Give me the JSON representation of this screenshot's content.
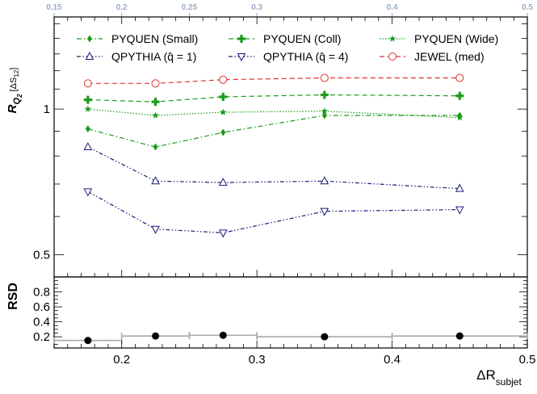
{
  "chart_data": {
    "type": "line",
    "x_axis": {
      "label_main": "ΔR",
      "label_sub": "subjet",
      "range": [
        0.15,
        0.5
      ],
      "ticks": [
        "0.2",
        "0.3",
        "0.4",
        "0.5"
      ],
      "top_ticks": [
        "0.15",
        "0.2",
        "0.25",
        "0.3",
        "0.4",
        "0.5"
      ]
    },
    "top_panel": {
      "y_label_main": "R",
      "y_label_q": "Q",
      "y_label_q_sub": "2",
      "y_label_rest": " [ΔS",
      "y_label_rest_sub": "12",
      "y_label_close": "]",
      "y_range": [
        0.45,
        1.55
      ],
      "y_log": true,
      "y_ticks": [
        "0.5",
        "1"
      ],
      "legend": [
        {
          "label": "PYQUEN (Small)",
          "color": "#1a9b1a",
          "marker": "diamond",
          "dash": "dashdot"
        },
        {
          "label": "PYQUEN (Coll)",
          "color": "#1a9b1a",
          "marker": "cross",
          "dash": "dashed"
        },
        {
          "label": "PYQUEN (Wide)",
          "color": "#1a9b1a",
          "marker": "star",
          "dash": "dotted"
        },
        {
          "label": "QPYTHIA (q̂ = 1)",
          "color": "#1c1c7a",
          "marker": "triangle-up",
          "dash": "dashdotdot"
        },
        {
          "label": "QPYTHIA (q̂ = 4)",
          "color": "#1c1c7a",
          "marker": "triangle-down",
          "dash": "dashdotdot"
        },
        {
          "label": "JEWEL (med)",
          "color": "#e03030",
          "marker": "circle",
          "dash": "dashed"
        }
      ],
      "x": [
        0.175,
        0.225,
        0.275,
        0.35,
        0.45
      ],
      "series": [
        {
          "name": "PYQUEN (Small)",
          "values": [
            0.91,
            0.835,
            0.895,
            0.97,
            0.97
          ]
        },
        {
          "name": "PYQUEN (Coll)",
          "values": [
            1.045,
            1.035,
            1.06,
            1.07,
            1.065
          ]
        },
        {
          "name": "PYQUEN (Wide)",
          "values": [
            1.0,
            0.97,
            0.985,
            0.99,
            0.96
          ]
        },
        {
          "name": "QPYTHIA (q̂ = 1)",
          "values": [
            0.835,
            0.71,
            0.705,
            0.71,
            0.685
          ]
        },
        {
          "name": "QPYTHIA (q̂ = 4)",
          "values": [
            0.675,
            0.565,
            0.555,
            0.615,
            0.62
          ]
        },
        {
          "name": "JEWEL (med)",
          "values": [
            1.13,
            1.13,
            1.15,
            1.16,
            1.16
          ]
        }
      ]
    },
    "bottom_panel": {
      "y_label": "RSD",
      "y_range": [
        0.05,
        1.0
      ],
      "y_ticks": [
        "0.2",
        "0.4",
        "0.6",
        "0.8"
      ],
      "bins": [
        [
          0.15,
          0.2
        ],
        [
          0.2,
          0.25
        ],
        [
          0.25,
          0.3
        ],
        [
          0.3,
          0.4
        ],
        [
          0.4,
          0.5
        ]
      ],
      "x": [
        0.175,
        0.225,
        0.275,
        0.35,
        0.45
      ],
      "values": [
        0.15,
        0.21,
        0.22,
        0.2,
        0.21
      ],
      "marker_color": "#000000",
      "band_color": "#aaaaaa"
    }
  }
}
